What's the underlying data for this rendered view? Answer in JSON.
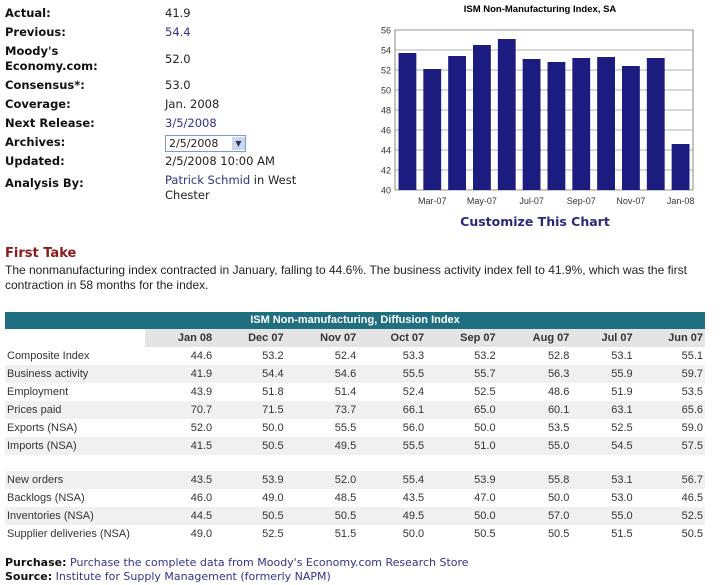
{
  "info": {
    "actual": {
      "label": "Actual:",
      "value": "41.9"
    },
    "previous": {
      "label": "Previous:",
      "value": "54.4"
    },
    "moodys": {
      "label1": "Moody's",
      "label2": "Economy.com:",
      "value": "52.0"
    },
    "consensus": {
      "label": "Consensus*:",
      "value": "53.0"
    },
    "coverage": {
      "label": "Coverage:",
      "value": "Jan. 2008"
    },
    "next_release": {
      "label": "Next Release:",
      "value": "3/5/2008"
    },
    "archives": {
      "label": "Archives:",
      "value": "2/5/2008"
    },
    "updated": {
      "label": "Updated:",
      "value": "2/5/2008 10:00 AM"
    },
    "analysis": {
      "label": "Analysis By:",
      "name": "Patrick Schmid",
      "rest1": " in West",
      "rest2": "Chester"
    }
  },
  "chart_data": {
    "type": "bar",
    "title": "ISM Non-Manufacturing Index, SA",
    "categories": [
      "Feb-07",
      "Mar-07",
      "Apr-07",
      "May-07",
      "Jun-07",
      "Jul-07",
      "Aug-07",
      "Sep-07",
      "Oct-07",
      "Nov-07",
      "Dec-07",
      "Jan-08"
    ],
    "tick_labels": [
      "Mar-07",
      "May-07",
      "Jul-07",
      "Sep-07",
      "Nov-07",
      "Jan-08"
    ],
    "values": [
      53.7,
      52.1,
      53.4,
      54.5,
      55.1,
      53.1,
      52.8,
      53.2,
      53.3,
      52.4,
      53.2,
      44.6
    ],
    "ylim": [
      40,
      56
    ],
    "yticks": [
      "40",
      "42",
      "44",
      "46",
      "48",
      "50",
      "52",
      "54",
      "56"
    ],
    "grid": true,
    "bar_color": "#1c1c80",
    "customize_link": "Customize This Chart"
  },
  "first_take": {
    "heading": "First Take",
    "text": "The nonmanufacturing index contracted in January, falling to 44.6%. The business activity index fell to 41.9%, which was the first contraction in 58 months for the index."
  },
  "table": {
    "caption": "ISM Non-manufacturing, Diffusion Index",
    "columns": [
      "Jan 08",
      "Dec 07",
      "Nov 07",
      "Oct 07",
      "Sep 07",
      "Aug 07",
      "Jul 07",
      "Jun 07"
    ],
    "rows": [
      {
        "label": "Composite Index",
        "values": [
          "44.6",
          "53.2",
          "52.4",
          "53.3",
          "53.2",
          "52.8",
          "53.1",
          "55.1"
        ]
      },
      {
        "label": "Business activity",
        "values": [
          "41.9",
          "54.4",
          "54.6",
          "55.5",
          "55.7",
          "56.3",
          "55.9",
          "59.7"
        ]
      },
      {
        "label": "Employment",
        "values": [
          "43.9",
          "51.8",
          "51.4",
          "52.4",
          "52.5",
          "48.6",
          "51.9",
          "53.5"
        ]
      },
      {
        "label": "Prices paid",
        "values": [
          "70.7",
          "71.5",
          "73.7",
          "66.1",
          "65.0",
          "60.1",
          "63.1",
          "65.6"
        ]
      },
      {
        "label": "Exports (NSA)",
        "values": [
          "52.0",
          "50.0",
          "55.5",
          "56.0",
          "50.0",
          "53.5",
          "52.5",
          "59.0"
        ]
      },
      {
        "label": "Imports (NSA)",
        "values": [
          "41.5",
          "50.5",
          "49.5",
          "55.5",
          "51.0",
          "55.0",
          "54.5",
          "57.5"
        ]
      },
      {
        "label": "New orders",
        "values": [
          "43.5",
          "53.9",
          "52.0",
          "55.4",
          "53.9",
          "55.8",
          "53.1",
          "56.7"
        ]
      },
      {
        "label": "Backlogs (NSA)",
        "values": [
          "46.0",
          "49.0",
          "48.5",
          "43.5",
          "47.0",
          "50.0",
          "53.0",
          "46.5"
        ]
      },
      {
        "label": "Inventories (NSA)",
        "values": [
          "44.5",
          "50.5",
          "50.5",
          "49.5",
          "50.0",
          "57.0",
          "55.0",
          "52.5"
        ]
      },
      {
        "label": "Supplier deliveries (NSA)",
        "values": [
          "49.0",
          "52.5",
          "51.5",
          "50.0",
          "50.5",
          "50.5",
          "51.5",
          "50.5"
        ]
      }
    ]
  },
  "footer": {
    "purchase_label": "Purchase:",
    "purchase_link": "Purchase the complete data from Moody's Economy.com Research Store",
    "source_label": "Source:",
    "source_link": "Institute for Supply Management (formerly NAPM)"
  }
}
